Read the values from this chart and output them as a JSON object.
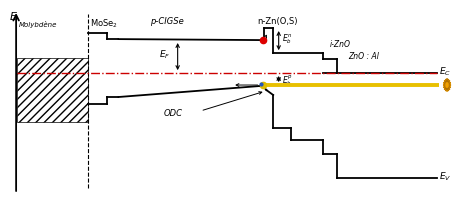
{
  "bg_color": "#ffffff",
  "figsize": [
    4.74,
    2.08
  ],
  "dpi": 100,
  "labels": {
    "E_axis": "E",
    "Molybdene": "Molybdène",
    "MoSe2": "MoSe$_2$",
    "pCIGSe": "p-CIGSe",
    "nZnOS": "n-Zn(O,S)",
    "iZnO": "i-ZnO",
    "ZnOAl": "ZnO : Al",
    "Ec": "$E_C$",
    "Ev": "$E_V$",
    "Ef": "$E_F$",
    "Ebn": "$E_b^n$",
    "Ebp": "$E_b^p$",
    "ODC": "ODC"
  },
  "colors": {
    "black": "#000000",
    "red_dash": "#cc0000",
    "yellow_line": "#e8c000",
    "red_dot": "#dd0000",
    "blue_dot": "#2255bb",
    "sun_color": "#f0a000",
    "sun_outline": "#b07000"
  },
  "xlim": [
    0,
    10
  ],
  "ylim": [
    0,
    10
  ]
}
